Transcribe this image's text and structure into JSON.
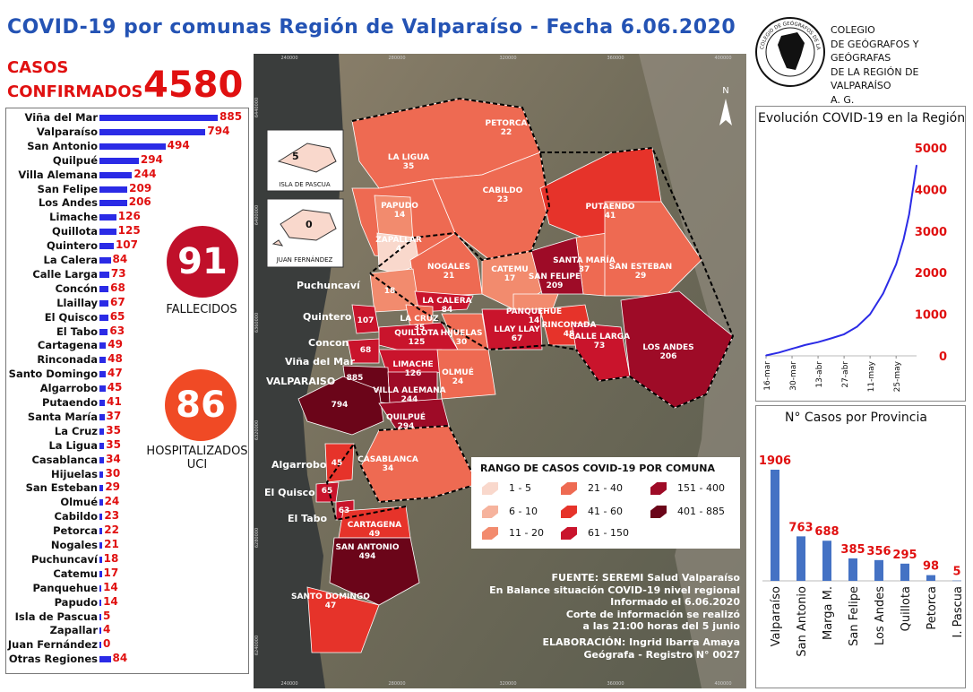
{
  "title": "COVID-19 por comunas Región de Valparaíso - Fecha 6.06.2020",
  "summary": {
    "casos_label_1": "CASOS",
    "casos_label_2": "CONFIRMADOS",
    "casos_value": "4580",
    "fallecidos_value": "91",
    "fallecidos_label": "FALLECIDOS",
    "hospitalizados_value": "86",
    "hospitalizados_label_1": "HOSPITALIZADOS",
    "hospitalizados_label_2": "UCI"
  },
  "ranking": [
    {
      "name": "Viña del Mar",
      "value": 885
    },
    {
      "name": "Valparaíso",
      "value": 794
    },
    {
      "name": "San Antonio",
      "value": 494
    },
    {
      "name": "Quilpué",
      "value": 294
    },
    {
      "name": "Villa Alemana",
      "value": 244
    },
    {
      "name": "San Felipe",
      "value": 209
    },
    {
      "name": "Los Andes",
      "value": 206
    },
    {
      "name": "Limache",
      "value": 126
    },
    {
      "name": "Quillota",
      "value": 125
    },
    {
      "name": "Quintero",
      "value": 107
    },
    {
      "name": "La Calera",
      "value": 84
    },
    {
      "name": "Calle Larga",
      "value": 73
    },
    {
      "name": "Concón",
      "value": 68
    },
    {
      "name": "Llaillay",
      "value": 67
    },
    {
      "name": "El Quisco",
      "value": 65
    },
    {
      "name": "El Tabo",
      "value": 63
    },
    {
      "name": "Cartagena",
      "value": 49
    },
    {
      "name": "Rinconada",
      "value": 48
    },
    {
      "name": "Santo Domingo",
      "value": 47
    },
    {
      "name": "Algarrobo",
      "value": 45
    },
    {
      "name": "Putaendo",
      "value": 41
    },
    {
      "name": "Santa María",
      "value": 37
    },
    {
      "name": "La Cruz",
      "value": 35
    },
    {
      "name": "La Ligua",
      "value": 35
    },
    {
      "name": "Casablanca",
      "value": 34
    },
    {
      "name": "Hijuelas",
      "value": 30
    },
    {
      "name": "San Esteban",
      "value": 29
    },
    {
      "name": "Olmué",
      "value": 24
    },
    {
      "name": "Cabildo",
      "value": 23
    },
    {
      "name": "Petorca",
      "value": 22
    },
    {
      "name": "Nogales",
      "value": 21
    },
    {
      "name": "Puchuncaví",
      "value": 18
    },
    {
      "name": "Catemu",
      "value": 17
    },
    {
      "name": "Panquehue",
      "value": 14
    },
    {
      "name": "Papudo",
      "value": 14
    },
    {
      "name": "Isla de Pascua",
      "value": 5
    },
    {
      "name": "Zapallar",
      "value": 4
    },
    {
      "name": "Juan Fernández",
      "value": 0
    },
    {
      "name": "Otras Regiones",
      "value": 84
    }
  ],
  "map": {
    "grid_top": [
      "240000",
      "280000",
      "320000",
      "360000",
      "400000"
    ],
    "grid_bottom": [
      "240000",
      "280000",
      "320000",
      "360000",
      "400000"
    ],
    "grid_left": [
      "6440000",
      "6400000",
      "6360000",
      "6320000",
      "6280000",
      "6240000"
    ],
    "north_label": "N",
    "inset_pascua_name": "ISLA DE PASCUA",
    "inset_pascua_value": "5",
    "inset_juan_name": "JUAN FERNÁNDEZ",
    "inset_juan_value": "0",
    "coast_labels": [
      "Puchuncaví",
      "Quintero",
      "Concon",
      "Viña del Mar",
      "VALPARAISO",
      "Algarrobo",
      "El Quisco",
      "El Tabo"
    ],
    "communes": [
      {
        "name": "PETORCA",
        "value": "22"
      },
      {
        "name": "LA LIGUA",
        "value": "35"
      },
      {
        "name": "CABILDO",
        "value": "23"
      },
      {
        "name": "PAPUDO",
        "value": "14"
      },
      {
        "name": "PUTAENDO",
        "value": "41"
      },
      {
        "name": "ZAPALLAR",
        "value": "4"
      },
      {
        "name": "SANTA MARÍA",
        "value": "37"
      },
      {
        "name": "SAN ESTEBAN",
        "value": "29"
      },
      {
        "name": "NOGALES",
        "value": "21"
      },
      {
        "name": "CATEMU",
        "value": "17"
      },
      {
        "name": "SAN FELIPE",
        "value": "209"
      },
      {
        "name": "",
        "value": "18"
      },
      {
        "name": "LA CALERA",
        "value": "84"
      },
      {
        "name": "PANQUEHUE",
        "value": "14"
      },
      {
        "name": "LA CRUZ",
        "value": "35"
      },
      {
        "name": "",
        "value": "107"
      },
      {
        "name": "QUILLOTA",
        "value": "125"
      },
      {
        "name": "HIJUELAS",
        "value": "30"
      },
      {
        "name": "LLAY LLAY",
        "value": "67"
      },
      {
        "name": "RINCONADA",
        "value": "48"
      },
      {
        "name": "CALLE LARGA",
        "value": "73"
      },
      {
        "name": "LOS ANDES",
        "value": "206"
      },
      {
        "name": "",
        "value": "68"
      },
      {
        "name": "LIMACHE",
        "value": "126"
      },
      {
        "name": "",
        "value": "885"
      },
      {
        "name": "VILLA ALEMANA",
        "value": "244"
      },
      {
        "name": "OLMUÉ",
        "value": "24"
      },
      {
        "name": "",
        "value": "794"
      },
      {
        "name": "QUILPUÉ",
        "value": "294"
      },
      {
        "name": "CASABLANCA",
        "value": "34"
      },
      {
        "name": "",
        "value": "45"
      },
      {
        "name": "",
        "value": "65"
      },
      {
        "name": "",
        "value": "63"
      },
      {
        "name": "CARTAGENA",
        "value": "49"
      },
      {
        "name": "SAN ANTONIO",
        "value": "494"
      },
      {
        "name": "SANTO DOMINGO",
        "value": "47"
      }
    ]
  },
  "legend": {
    "title": "RANGO DE CASOS COVID-19 POR COMUNA",
    "items": [
      {
        "label": "1 - 5",
        "color": "#f9d8cc"
      },
      {
        "label": "6 - 10",
        "color": "#f6b39d"
      },
      {
        "label": "11 - 20",
        "color": "#f28b6e"
      },
      {
        "label": "21 - 40",
        "color": "#ee6a52"
      },
      {
        "label": "41 - 60",
        "color": "#e6332a"
      },
      {
        "label": "61 - 150",
        "color": "#c9142c"
      },
      {
        "label": "151 - 400",
        "color": "#9e0b27"
      },
      {
        "label": "401 - 885",
        "color": "#6b0519"
      }
    ]
  },
  "source": [
    "FUENTE: SEREMI Salud Valparaíso",
    "En Balance situación COVID-19 nivel regional",
    "Informado el 6.06.2020",
    "Corte de información se realizó",
    "a las 21:00 horas del 5 junio",
    "ELABORACIÓN: Ingrid Ibarra Amaya",
    "Geógrafa - Registro N° 0027"
  ],
  "college": {
    "logo_text": "COLEGIO DE GEÓGRAFOS DE LA REGIÓN DE VALPARAÍSO",
    "lines": [
      "COLEGIO",
      "DE GEÓGRAFOS Y GEÓGRAFAS",
      "DE LA REGIÓN DE VALPARAÍSO",
      "A. G."
    ]
  },
  "chart_data": [
    {
      "type": "line",
      "title": "Evolución COVID-19 en la Región",
      "x_ticks": [
        "16-mar",
        "30-mar",
        "13-abr",
        "27-abr",
        "11-may",
        "25-may"
      ],
      "y_ticks": [
        "0",
        "1000",
        "2000",
        "3000",
        "4000",
        "5000"
      ],
      "ylim": [
        0,
        5000
      ],
      "color": "#2b2be6",
      "x": [
        "2020-03-16",
        "2020-03-23",
        "2020-03-30",
        "2020-04-06",
        "2020-04-13",
        "2020-04-20",
        "2020-04-27",
        "2020-05-04",
        "2020-05-11",
        "2020-05-18",
        "2020-05-25",
        "2020-05-29",
        "2020-06-01",
        "2020-06-03",
        "2020-06-05"
      ],
      "values": [
        10,
        80,
        170,
        260,
        330,
        420,
        520,
        700,
        1000,
        1500,
        2200,
        2800,
        3400,
        4000,
        4580
      ]
    },
    {
      "type": "bar",
      "title": "N° Casos por Provincia",
      "categories": [
        "Valparaíso",
        "San Antonio",
        "Marga M.",
        "San Felipe",
        "Los Andes",
        "Quillota",
        "Petorca",
        "I. Pascua"
      ],
      "values": [
        1906,
        763,
        688,
        385,
        356,
        295,
        98,
        5
      ],
      "bar_color": "#4472c4",
      "label_color": "#e01010"
    }
  ]
}
